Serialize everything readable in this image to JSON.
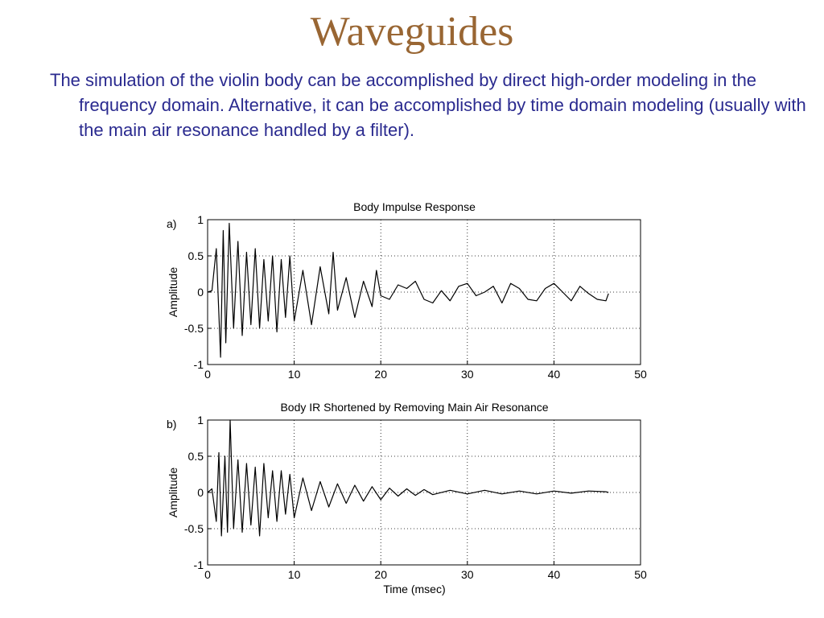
{
  "slide": {
    "title": "Waveguides",
    "body": "The simulation of the violin body can be accomplished by direct high-order modeling in the frequency domain.  Alternative, it can be accomplished by time domain modeling (usually with the main air resonance handled by a filter)."
  },
  "chart_data": [
    {
      "type": "line",
      "panel_label": "a)",
      "title": "Body Impulse Response",
      "xlabel": "",
      "ylabel": "Amplitude",
      "xlim": [
        0,
        50
      ],
      "ylim": [
        -1,
        1
      ],
      "xticks": [
        0,
        10,
        20,
        30,
        40,
        50
      ],
      "yticks": [
        1,
        0.5,
        0,
        -0.5,
        -1
      ],
      "grid": true,
      "series": [
        {
          "x": [
            0,
            0.5,
            1,
            1.5,
            1.8,
            2.1,
            2.5,
            3,
            3.5,
            4,
            4.5,
            5,
            5.5,
            6,
            6.5,
            7,
            7.5,
            8,
            8.5,
            9,
            9.5,
            10,
            11,
            12,
            13,
            14,
            14.5,
            15,
            16,
            17,
            18,
            19,
            19.5,
            20,
            21,
            22,
            23,
            24,
            25,
            26,
            27,
            28,
            29,
            30,
            31,
            32,
            33,
            34,
            35,
            36,
            37,
            38,
            39,
            40,
            41,
            42,
            43,
            44,
            45,
            46,
            46.3
          ],
          "y": [
            0,
            0.02,
            0.6,
            -0.9,
            0.85,
            -0.7,
            0.95,
            -0.5,
            0.7,
            -0.6,
            0.55,
            -0.45,
            0.6,
            -0.5,
            0.45,
            -0.4,
            0.5,
            -0.55,
            0.45,
            -0.35,
            0.5,
            -0.4,
            0.3,
            -0.45,
            0.35,
            -0.3,
            0.55,
            -0.25,
            0.2,
            -0.35,
            0.15,
            -0.2,
            0.3,
            -0.05,
            -0.1,
            0.1,
            0.05,
            0.15,
            -0.1,
            -0.15,
            0.02,
            -0.12,
            0.08,
            0.12,
            -0.05,
            0,
            0.08,
            -0.15,
            0.12,
            0.05,
            -0.1,
            -0.12,
            0.05,
            0.12,
            0,
            -0.12,
            0.08,
            -0.02,
            -0.1,
            -0.12,
            -0.02
          ]
        }
      ]
    },
    {
      "type": "line",
      "panel_label": "b)",
      "title": "Body IR Shortened by Removing Main Air Resonance",
      "xlabel": "Time (msec)",
      "ylabel": "Amplitude",
      "xlim": [
        0,
        50
      ],
      "ylim": [
        -1,
        1
      ],
      "xticks": [
        0,
        10,
        20,
        30,
        40,
        50
      ],
      "yticks": [
        1,
        0.5,
        0,
        -0.5,
        -1
      ],
      "grid": true,
      "series": [
        {
          "x": [
            0,
            0.5,
            1,
            1.3,
            1.6,
            2,
            2.3,
            2.6,
            3,
            3.5,
            4,
            4.5,
            5,
            5.5,
            6,
            6.5,
            7,
            7.5,
            8,
            8.5,
            9,
            9.5,
            10,
            11,
            12,
            13,
            14,
            15,
            16,
            17,
            18,
            19,
            20,
            21,
            22,
            23,
            24,
            25,
            26,
            28,
            30,
            32,
            34,
            36,
            38,
            40,
            42,
            44,
            46,
            46.3
          ],
          "y": [
            0,
            0.05,
            -0.4,
            0.55,
            -0.6,
            0.5,
            -0.55,
            1.0,
            -0.5,
            0.45,
            -0.55,
            0.4,
            -0.45,
            0.35,
            -0.6,
            0.4,
            -0.35,
            0.3,
            -0.4,
            0.3,
            -0.3,
            0.25,
            -0.35,
            0.2,
            -0.25,
            0.15,
            -0.2,
            0.12,
            -0.15,
            0.1,
            -0.12,
            0.08,
            -0.1,
            0.06,
            -0.05,
            0.05,
            -0.04,
            0.04,
            -0.03,
            0.03,
            -0.02,
            0.03,
            -0.02,
            0.02,
            -0.02,
            0.02,
            -0.01,
            0.02,
            0.01,
            0.0
          ]
        }
      ]
    }
  ]
}
